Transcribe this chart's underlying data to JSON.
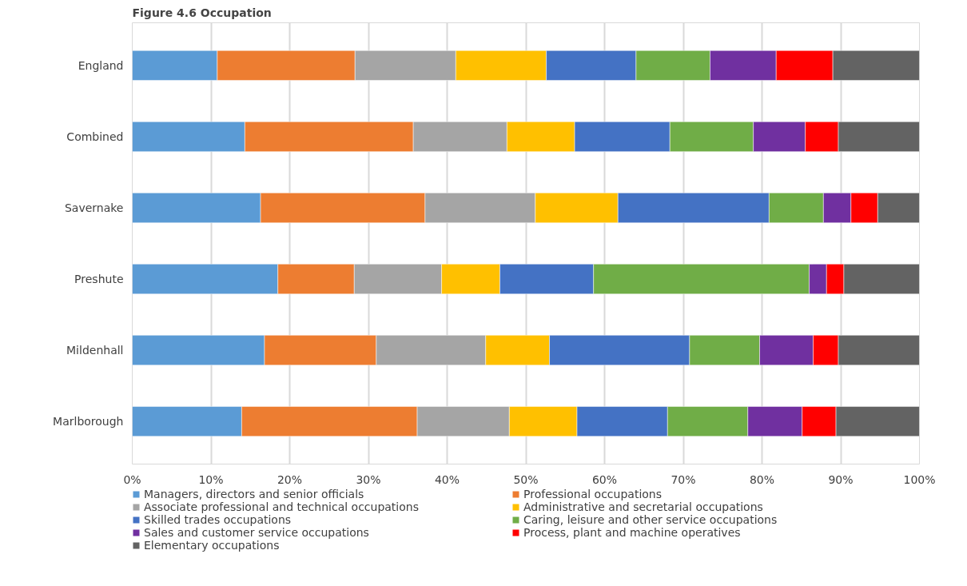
{
  "chart_data": {
    "type": "bar",
    "orientation": "horizontal",
    "stacked": true,
    "title": "Figure 4.6 Occupation",
    "categories": [
      "England",
      "Combined",
      "Savernake",
      "Preshute",
      "Mildenhall",
      "Marlborough"
    ],
    "xlim": [
      0,
      100
    ],
    "xticks": [
      {
        "value": 0,
        "label": "0%"
      },
      {
        "value": 10,
        "label": "10%"
      },
      {
        "value": 20,
        "label": "20%"
      },
      {
        "value": 30,
        "label": "30%"
      },
      {
        "value": 40,
        "label": "40%"
      },
      {
        "value": 50,
        "label": "50%"
      },
      {
        "value": 60,
        "label": "60%"
      },
      {
        "value": 70,
        "label": "70%"
      },
      {
        "value": 80,
        "label": "80%"
      },
      {
        "value": 90,
        "label": "90%"
      },
      {
        "value": 100,
        "label": "100%"
      }
    ],
    "grid": "x",
    "legend": "bottom",
    "series": [
      {
        "name": "Managers, directors and senior officials",
        "color": "#5b9bd5",
        "values": [
          10.8,
          14.3,
          16.3,
          18.5,
          16.8,
          13.9
        ]
      },
      {
        "name": "Professional occupations",
        "color": "#ed7d31",
        "values": [
          17.5,
          21.4,
          20.9,
          9.7,
          14.2,
          22.3
        ]
      },
      {
        "name": "Associate professional and technical occupations",
        "color": "#a5a5a5",
        "values": [
          12.8,
          11.9,
          14.0,
          11.1,
          13.9,
          11.7
        ]
      },
      {
        "name": "Administrative and secretarial occupations",
        "color": "#ffc000",
        "values": [
          11.5,
          8.6,
          10.5,
          7.4,
          8.1,
          8.6
        ]
      },
      {
        "name": "Skilled trades occupations",
        "color": "#4472c4",
        "values": [
          11.4,
          12.1,
          19.2,
          11.9,
          17.8,
          11.5
        ]
      },
      {
        "name": "Caring, leisure and other service occupations",
        "color": "#70ad47",
        "values": [
          9.4,
          10.6,
          6.9,
          27.4,
          8.9,
          10.2
        ]
      },
      {
        "name": "Sales and customer service occupations",
        "color": "#7030a0",
        "values": [
          8.4,
          6.6,
          3.5,
          2.2,
          6.8,
          6.9
        ]
      },
      {
        "name": "Process, plant and machine operatives",
        "color": "#ff0000",
        "values": [
          7.2,
          4.2,
          3.4,
          2.2,
          3.2,
          4.3
        ]
      },
      {
        "name": "Elementary occupations",
        "color": "#636363",
        "values": [
          11.0,
          10.3,
          5.3,
          9.6,
          10.3,
          10.6
        ]
      }
    ]
  }
}
